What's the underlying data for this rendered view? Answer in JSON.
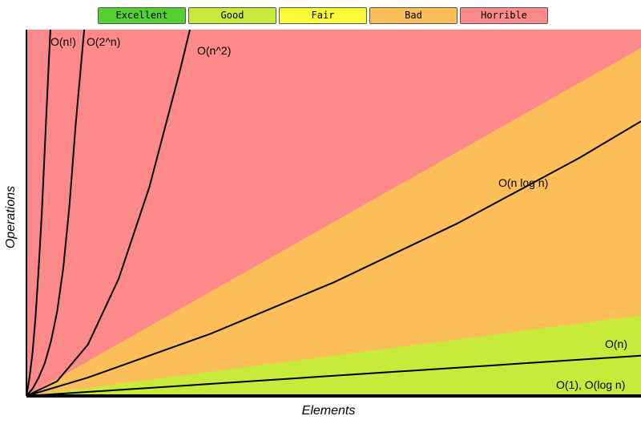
{
  "legend": [
    {
      "label": "Excellent",
      "color": "#53d132"
    },
    {
      "label": "Good",
      "color": "#c8ea3a"
    },
    {
      "label": "Fair",
      "color": "#fbfb3a"
    },
    {
      "label": "Bad",
      "color": "#fbbe58"
    },
    {
      "label": "Horrible",
      "color": "#fc8a8a"
    }
  ],
  "chart_data": {
    "type": "line",
    "xlabel": "Elements",
    "ylabel": "Operations",
    "xlim": [
      0,
      100
    ],
    "ylim": [
      0,
      100
    ],
    "grid": false,
    "legend_position": "top",
    "regions": [
      {
        "name": "Horrible",
        "color": "#fc8a8a",
        "boundary_top": [
          [
            0,
            0
          ],
          [
            0,
            100
          ],
          [
            100,
            100
          ]
        ]
      },
      {
        "name": "Bad",
        "color": "#fbbe58",
        "boundary_top": [
          [
            0,
            0
          ],
          [
            100,
            95
          ]
        ]
      },
      {
        "name": "Good",
        "color": "#c8ea3a",
        "boundary_top": [
          [
            0,
            0
          ],
          [
            100,
            22
          ]
        ]
      }
    ],
    "series": [
      {
        "name": "O(n!)",
        "x": [
          0,
          0.5,
          1,
          1.5,
          2,
          2.5,
          3,
          3.5,
          3.9
        ],
        "y": [
          0,
          5,
          12,
          22,
          35,
          50,
          68,
          86,
          100
        ]
      },
      {
        "name": "O(2^n)",
        "x": [
          0,
          1,
          2,
          3,
          4,
          5,
          6,
          7,
          8,
          9.4
        ],
        "y": [
          0,
          2,
          5,
          9,
          15,
          23,
          35,
          52,
          74,
          100
        ]
      },
      {
        "name": "O(n^2)",
        "x": [
          0,
          5,
          10,
          15,
          20,
          25,
          26.6
        ],
        "y": [
          0,
          4,
          14,
          32,
          57,
          89,
          100
        ]
      },
      {
        "name": "O(n log n)",
        "x": [
          0,
          10,
          20,
          30,
          40,
          50,
          60,
          70,
          80,
          90,
          100
        ],
        "y": [
          0,
          5,
          11,
          17,
          24,
          31,
          39,
          47,
          56,
          65,
          75
        ]
      },
      {
        "name": "O(n)",
        "x": [
          0,
          100
        ],
        "y": [
          0,
          11
        ]
      },
      {
        "name": "O(1), O(log n)",
        "x": [
          0,
          100
        ],
        "y": [
          0,
          0
        ]
      }
    ]
  }
}
